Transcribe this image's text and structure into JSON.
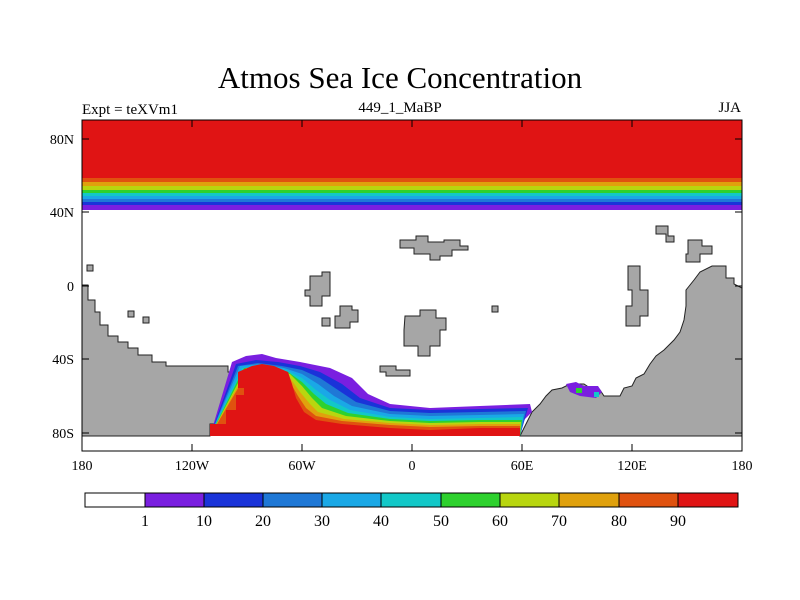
{
  "title": "Atmos Sea Ice Concentration",
  "subtitle_left": "Expt = teXVm1",
  "subtitle_center": "449_1_MaBP",
  "subtitle_right": "JJA",
  "axes": {
    "x_ticks": [
      "180",
      "120W",
      "60W",
      "0",
      "60E",
      "120E",
      "180"
    ],
    "y_ticks": [
      "80N",
      "40N",
      "0",
      "40S",
      "80S"
    ]
  },
  "colorbar": {
    "labels": [
      "1",
      "10",
      "20",
      "30",
      "40",
      "50",
      "60",
      "70",
      "80",
      "90"
    ],
    "colors": [
      "#ffffff",
      "#7a1fe0",
      "#1a33d9",
      "#1f78d6",
      "#1aa8e6",
      "#12c8c8",
      "#2ed12e",
      "#b8d60f",
      "#e0a10d",
      "#e0520f",
      "#e01414"
    ]
  },
  "colors": {
    "land": "#a6a6a6",
    "ice_max": "#e01414"
  }
}
